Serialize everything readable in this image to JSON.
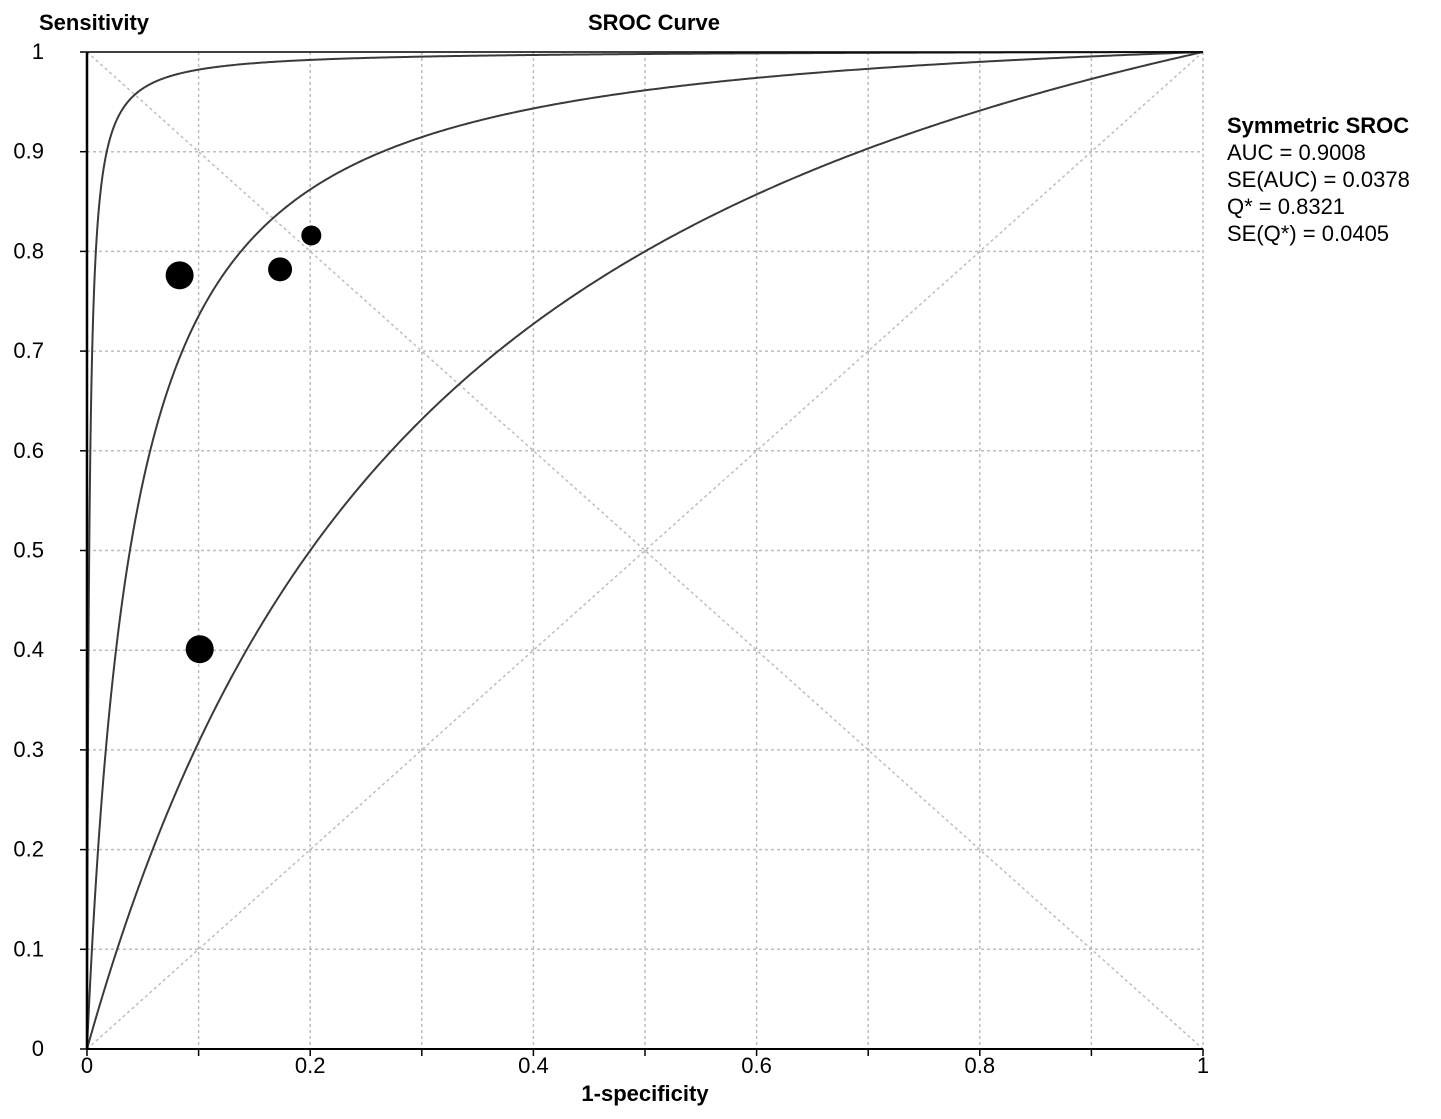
{
  "chart_data": {
    "type": "line",
    "title": "SROC Curve",
    "xlabel": "1-specificity",
    "ylabel": "Sensitivity",
    "xlim": [
      0,
      1
    ],
    "ylim": [
      0,
      1
    ],
    "grid": true,
    "x_ticks": [
      0,
      0.1,
      0.2,
      0.3,
      0.4,
      0.5,
      0.6,
      0.7,
      0.8,
      0.9,
      1
    ],
    "y_ticks": [
      0,
      0.1,
      0.2,
      0.3,
      0.4,
      0.5,
      0.6,
      0.7,
      0.8,
      0.9,
      1
    ],
    "x_tick_labels": [
      "0",
      "0.2",
      "0.4",
      "0.6",
      "0.8",
      "1"
    ],
    "y_tick_labels": [
      "0",
      "0.1",
      "0.2",
      "0.3",
      "0.4",
      "0.5",
      "0.6",
      "0.7",
      "0.8",
      "0.9",
      "1"
    ],
    "curves": [
      {
        "role": "upper-confidence",
        "diagnostic_odds_ratio": 500
      },
      {
        "role": "symmetric-sroc",
        "diagnostic_odds_ratio": 25
      },
      {
        "role": "lower-confidence",
        "diagnostic_odds_ratio": 4
      }
    ],
    "reference_lines": [
      {
        "from": [
          0,
          0
        ],
        "to": [
          1,
          1
        ]
      },
      {
        "from": [
          0,
          1
        ],
        "to": [
          1,
          0
        ]
      }
    ],
    "points": [
      {
        "x": 0.083,
        "y": 0.776,
        "weight": "large"
      },
      {
        "x": 0.173,
        "y": 0.782,
        "weight": "medium"
      },
      {
        "x": 0.201,
        "y": 0.816,
        "weight": "small"
      },
      {
        "x": 0.101,
        "y": 0.401,
        "weight": "large"
      }
    ],
    "legend_position": "right",
    "stats": {
      "title": "Symmetric SROC",
      "lines": [
        "AUC = 0.9008",
        "SE(AUC) = 0.0378",
        "Q* = 0.8321",
        "SE(Q*) = 0.0405"
      ]
    },
    "colors": {
      "curve": "#3a3a3a",
      "grid": "#bdbdbd",
      "point": "#000000",
      "axis": "#000000"
    }
  }
}
